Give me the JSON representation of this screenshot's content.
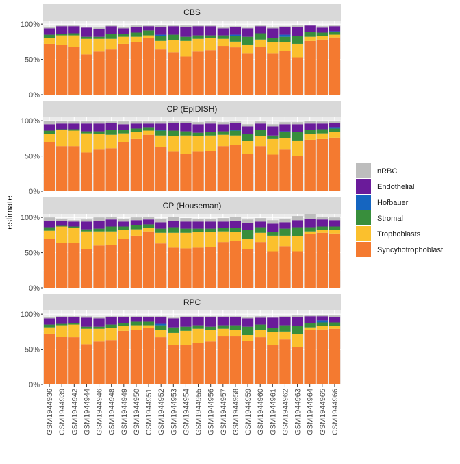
{
  "chart_data": {
    "type": "bar",
    "stacked": true,
    "ylabel": "estimate",
    "xlabel": "",
    "ylim": [
      0,
      1.05
    ],
    "y_ticks": [
      0,
      0.5,
      1.0
    ],
    "y_tick_labels": [
      "0%",
      "50%",
      "100%"
    ],
    "grid": true,
    "legend_position": "right",
    "categories": [
      "GSM1944936",
      "GSM1944939",
      "GSM1944942",
      "GSM1944944",
      "GSM1944946",
      "GSM1944948",
      "GSM1944949",
      "GSM1944950",
      "GSM1944951",
      "GSM1944952",
      "GSM1944953",
      "GSM1944954",
      "GSM1944955",
      "GSM1944956",
      "GSM1944957",
      "GSM1944958",
      "GSM1944959",
      "GSM1944960",
      "GSM1944961",
      "GSM1944962",
      "GSM1944963",
      "GSM1944964",
      "GSM1944965",
      "GSM1944966"
    ],
    "series_order": [
      "Syncytiotrophoblast",
      "Trophoblasts",
      "Stromal",
      "Hofbauer",
      "Endothelial",
      "nRBC"
    ],
    "legend_order": [
      "nRBC",
      "Endothelial",
      "Hofbauer",
      "Stromal",
      "Trophoblasts",
      "Syncytiotrophoblast"
    ],
    "colors": {
      "nRBC": "#BDBDBD",
      "Endothelial": "#6A1B9A",
      "Hofbauer": "#1565C0",
      "Stromal": "#388E3C",
      "Trophoblasts": "#FBC02D",
      "Syncytiotrophoblast": "#F47A30"
    },
    "panels": [
      {
        "title": "CBS",
        "series": [
          {
            "name": "Syncytiotrophoblast",
            "values": [
              0.72,
              0.7,
              0.68,
              0.57,
              0.61,
              0.64,
              0.72,
              0.74,
              0.8,
              0.64,
              0.6,
              0.54,
              0.61,
              0.63,
              0.69,
              0.67,
              0.58,
              0.68,
              0.58,
              0.62,
              0.53,
              0.76,
              0.78,
              0.81
            ]
          },
          {
            "name": "Trophoblasts",
            "values": [
              0.08,
              0.14,
              0.16,
              0.22,
              0.18,
              0.15,
              0.1,
              0.08,
              0.04,
              0.12,
              0.17,
              0.22,
              0.18,
              0.17,
              0.1,
              0.08,
              0.13,
              0.1,
              0.16,
              0.12,
              0.19,
              0.06,
              0.05,
              0.04
            ]
          },
          {
            "name": "Stromal",
            "values": [
              0.05,
              0.02,
              0.03,
              0.03,
              0.03,
              0.07,
              0.04,
              0.06,
              0.07,
              0.07,
              0.08,
              0.06,
              0.05,
              0.04,
              0.05,
              0.08,
              0.11,
              0.09,
              0.06,
              0.08,
              0.11,
              0.07,
              0.05,
              0.04
            ]
          },
          {
            "name": "Hofbauer",
            "values": [
              0.0,
              0.0,
              0.0,
              0.0,
              0.0,
              0.0,
              0.0,
              0.0,
              0.0,
              0.02,
              0.0,
              0.0,
              0.0,
              0.0,
              0.0,
              0.02,
              0.0,
              0.0,
              0.0,
              0.03,
              0.0,
              0.0,
              0.0,
              0.01
            ]
          },
          {
            "name": "Endothelial",
            "values": [
              0.09,
              0.11,
              0.1,
              0.13,
              0.11,
              0.11,
              0.08,
              0.08,
              0.06,
              0.11,
              0.12,
              0.14,
              0.13,
              0.13,
              0.1,
              0.11,
              0.12,
              0.1,
              0.14,
              0.11,
              0.13,
              0.09,
              0.07,
              0.07
            ]
          },
          {
            "name": "nRBC",
            "values": [
              0.02,
              0.01,
              0.01,
              0.01,
              0.02,
              0.01,
              0.02,
              0.02,
              0.01,
              0.02,
              0.01,
              0.02,
              0.01,
              0.01,
              0.02,
              0.01,
              0.01,
              0.01,
              0.02,
              0.01,
              0.02,
              0.01,
              0.02,
              0.01
            ]
          }
        ]
      },
      {
        "title": "CP (EpiDISH)",
        "series": [
          {
            "name": "Syncytiotrophoblast",
            "values": [
              0.7,
              0.64,
              0.64,
              0.55,
              0.59,
              0.61,
              0.7,
              0.74,
              0.8,
              0.63,
              0.56,
              0.53,
              0.56,
              0.57,
              0.64,
              0.66,
              0.53,
              0.64,
              0.52,
              0.59,
              0.5,
              0.73,
              0.74,
              0.76
            ]
          },
          {
            "name": "Trophoblasts",
            "values": [
              0.11,
              0.23,
              0.22,
              0.27,
              0.22,
              0.19,
              0.12,
              0.1,
              0.06,
              0.16,
              0.22,
              0.26,
              0.22,
              0.22,
              0.16,
              0.13,
              0.18,
              0.14,
              0.22,
              0.16,
              0.22,
              0.08,
              0.08,
              0.08
            ]
          },
          {
            "name": "Stromal",
            "values": [
              0.05,
              0.01,
              0.02,
              0.03,
              0.04,
              0.07,
              0.05,
              0.05,
              0.04,
              0.07,
              0.08,
              0.06,
              0.05,
              0.05,
              0.05,
              0.07,
              0.1,
              0.09,
              0.05,
              0.09,
              0.12,
              0.06,
              0.06,
              0.05
            ]
          },
          {
            "name": "Hofbauer",
            "values": [
              0.0,
              0.0,
              0.0,
              0.0,
              0.0,
              0.0,
              0.0,
              0.0,
              0.0,
              0.01,
              0.0,
              0.0,
              0.0,
              0.0,
              0.0,
              0.01,
              0.0,
              0.0,
              0.0,
              0.01,
              0.0,
              0.0,
              0.0,
              0.01
            ]
          },
          {
            "name": "Endothelial",
            "values": [
              0.09,
              0.08,
              0.08,
              0.11,
              0.11,
              0.1,
              0.08,
              0.07,
              0.06,
              0.09,
              0.11,
              0.12,
              0.12,
              0.12,
              0.1,
              0.1,
              0.11,
              0.09,
              0.13,
              0.1,
              0.11,
              0.09,
              0.08,
              0.07
            ]
          },
          {
            "name": "nRBC",
            "values": [
              0.05,
              0.04,
              0.03,
              0.03,
              0.03,
              0.02,
              0.04,
              0.03,
              0.03,
              0.03,
              0.02,
              0.02,
              0.03,
              0.03,
              0.03,
              0.02,
              0.03,
              0.03,
              0.03,
              0.03,
              0.03,
              0.04,
              0.03,
              0.02
            ]
          }
        ]
      },
      {
        "title": "CP (Houseman)",
        "series": [
          {
            "name": "Syncytiotrophoblast",
            "values": [
              0.7,
              0.64,
              0.64,
              0.55,
              0.6,
              0.61,
              0.7,
              0.74,
              0.8,
              0.63,
              0.57,
              0.56,
              0.57,
              0.58,
              0.65,
              0.67,
              0.55,
              0.65,
              0.52,
              0.59,
              0.52,
              0.76,
              0.78,
              0.77
            ]
          },
          {
            "name": "Trophoblasts",
            "values": [
              0.11,
              0.23,
              0.21,
              0.25,
              0.2,
              0.19,
              0.12,
              0.09,
              0.05,
              0.15,
              0.21,
              0.22,
              0.22,
              0.21,
              0.15,
              0.12,
              0.15,
              0.13,
              0.22,
              0.15,
              0.21,
              0.04,
              0.04,
              0.05
            ]
          },
          {
            "name": "Stromal",
            "values": [
              0.05,
              0.01,
              0.02,
              0.03,
              0.04,
              0.07,
              0.05,
              0.06,
              0.05,
              0.06,
              0.08,
              0.06,
              0.05,
              0.05,
              0.05,
              0.06,
              0.12,
              0.08,
              0.05,
              0.1,
              0.13,
              0.06,
              0.05,
              0.05
            ]
          },
          {
            "name": "Hofbauer",
            "values": [
              0.0,
              0.0,
              0.0,
              0.0,
              0.0,
              0.0,
              0.0,
              0.0,
              0.0,
              0.0,
              0.0,
              0.0,
              0.0,
              0.0,
              0.0,
              0.0,
              0.0,
              0.0,
              0.0,
              0.0,
              0.0,
              0.0,
              0.0,
              0.0
            ]
          },
          {
            "name": "Endothelial",
            "values": [
              0.09,
              0.07,
              0.07,
              0.11,
              0.11,
              0.1,
              0.07,
              0.07,
              0.07,
              0.09,
              0.09,
              0.1,
              0.1,
              0.1,
              0.09,
              0.1,
              0.1,
              0.08,
              0.12,
              0.09,
              0.1,
              0.12,
              0.1,
              0.09
            ]
          },
          {
            "name": "nRBC",
            "values": [
              0.05,
              0.03,
              0.02,
              0.03,
              0.05,
              0.04,
              0.04,
              0.04,
              0.04,
              0.05,
              0.06,
              0.05,
              0.04,
              0.04,
              0.05,
              0.06,
              0.05,
              0.05,
              0.05,
              0.05,
              0.06,
              0.07,
              0.04,
              0.04
            ]
          }
        ]
      },
      {
        "title": "RPC",
        "series": [
          {
            "name": "Syncytiotrophoblast",
            "values": [
              0.72,
              0.68,
              0.67,
              0.57,
              0.61,
              0.63,
              0.76,
              0.77,
              0.8,
              0.67,
              0.56,
              0.56,
              0.59,
              0.61,
              0.69,
              0.69,
              0.62,
              0.67,
              0.56,
              0.64,
              0.53,
              0.77,
              0.78,
              0.79
            ]
          },
          {
            "name": "Trophoblasts",
            "values": [
              0.09,
              0.16,
              0.18,
              0.22,
              0.18,
              0.17,
              0.07,
              0.07,
              0.04,
              0.1,
              0.17,
              0.2,
              0.2,
              0.16,
              0.1,
              0.08,
              0.08,
              0.1,
              0.18,
              0.11,
              0.18,
              0.04,
              0.05,
              0.04
            ]
          },
          {
            "name": "Stromal",
            "values": [
              0.04,
              0.02,
              0.02,
              0.03,
              0.03,
              0.05,
              0.04,
              0.05,
              0.05,
              0.07,
              0.08,
              0.06,
              0.05,
              0.05,
              0.05,
              0.07,
              0.12,
              0.08,
              0.06,
              0.09,
              0.12,
              0.06,
              0.05,
              0.05
            ]
          },
          {
            "name": "Hofbauer",
            "values": [
              0.0,
              0.0,
              0.0,
              0.0,
              0.0,
              0.0,
              0.0,
              0.0,
              0.0,
              0.02,
              0.0,
              0.0,
              0.0,
              0.0,
              0.0,
              0.0,
              0.0,
              0.0,
              0.0,
              0.0,
              0.0,
              0.0,
              0.03,
              0.0
            ]
          },
          {
            "name": "Endothelial",
            "values": [
              0.09,
              0.1,
              0.09,
              0.13,
              0.12,
              0.11,
              0.09,
              0.07,
              0.07,
              0.1,
              0.13,
              0.14,
              0.12,
              0.14,
              0.12,
              0.12,
              0.12,
              0.1,
              0.15,
              0.12,
              0.13,
              0.1,
              0.06,
              0.08
            ]
          },
          {
            "name": "nRBC",
            "values": [
              0.02,
              0.01,
              0.01,
              0.02,
              0.02,
              0.01,
              0.01,
              0.01,
              0.01,
              0.01,
              0.01,
              0.01,
              0.01,
              0.01,
              0.01,
              0.01,
              0.02,
              0.02,
              0.01,
              0.01,
              0.02,
              0.01,
              0.02,
              0.02
            ]
          }
        ]
      }
    ]
  }
}
